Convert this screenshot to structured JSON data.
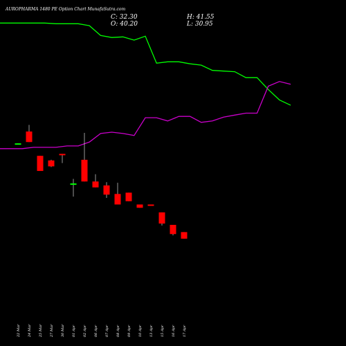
{
  "header": {
    "title": "AUROPHARMA 1480  PE Option  Chart MunafaSutra.com",
    "close_label": "C: 32.30",
    "open_label": "O: 40.20",
    "high_label": "H: 41.55",
    "low_label": "L: 30.95"
  },
  "colors": {
    "background": "#000000",
    "up_candle": "#00ff00",
    "down_candle": "#ff0000",
    "wick": "#ffffff",
    "upper_line": "#00ff00",
    "lower_line": "#cc00cc"
  },
  "chart_data": {
    "type": "candlestick",
    "categories": [
      "22 Mar",
      "24 Mar",
      "25 Mar",
      "27 Mar",
      "30 Mar",
      "01 Apr",
      "02 Apr",
      "06 Apr",
      "07 Apr",
      "08 Apr",
      "09 Apr",
      "10 Apr",
      "13 Apr",
      "15 Apr",
      "16 Apr",
      "17 Apr"
    ],
    "ylim": [
      0,
      100
    ],
    "candles": [
      {
        "open": 60.6,
        "close": 60.4,
        "high": 60.6,
        "low": 60.4
      },
      {
        "open": 61.0,
        "close": 64.2,
        "high": 66.2,
        "low": 61.0
      },
      {
        "open": 52.2,
        "close": 56.8,
        "high": 56.8,
        "low": 52.2
      },
      {
        "open": 53.6,
        "close": 55.4,
        "high": 55.6,
        "low": 53.4
      },
      {
        "open": 57.0,
        "close": 57.4,
        "high": 57.4,
        "low": 54.6
      },
      {
        "open": 48.4,
        "close": 48.2,
        "high": 49.8,
        "low": 44.4
      },
      {
        "open": 49.0,
        "close": 55.6,
        "high": 63.8,
        "low": 49.0
      },
      {
        "open": 47.2,
        "close": 49.0,
        "high": 51.2,
        "low": 47.2
      },
      {
        "open": 45.0,
        "close": 47.8,
        "high": 48.8,
        "low": 44.0
      },
      {
        "open": 42.0,
        "close": 45.2,
        "high": 48.6,
        "low": 42.0
      },
      {
        "open": 43.0,
        "close": 45.6,
        "high": 45.6,
        "low": 43.0
      },
      {
        "open": 41.0,
        "close": 42.0,
        "high": 42.0,
        "low": 41.0
      },
      {
        "open": 42.0,
        "close": 42.0,
        "high": 42.0,
        "low": 42.0
      },
      {
        "open": 36.2,
        "close": 39.6,
        "high": 39.6,
        "low": 35.6
      },
      {
        "open": 33.0,
        "close": 35.8,
        "high": 35.8,
        "low": 32.6
      },
      {
        "open": 31.6,
        "close": 33.6,
        "high": 33.6,
        "low": 31.6
      }
    ],
    "lines": [
      {
        "name": "",
        "color": "#00ff00",
        "x": [
          0,
          1,
          2,
          3,
          4,
          5,
          6,
          7,
          8,
          9,
          10,
          11,
          12,
          13,
          14,
          15,
          16,
          17,
          18,
          19,
          20,
          21,
          22,
          23,
          24,
          25,
          26
        ],
        "values": [
          97.2,
          97.2,
          97.2,
          97.2,
          97.2,
          97.0,
          97.0,
          97.0,
          96.4,
          93.4,
          92.8,
          93.0,
          92.0,
          93.2,
          85.0,
          85.4,
          85.4,
          84.8,
          84.4,
          82.8,
          82.6,
          82.4,
          80.6,
          80.6,
          77.0,
          73.8,
          72.2
        ],
        "note_x": "index of point along the span"
      },
      {
        "name": "",
        "color": "#cc00cc",
        "x": [
          0,
          1,
          2,
          3,
          4,
          5,
          6,
          7,
          8,
          9,
          10,
          11,
          12,
          13,
          14,
          15,
          16,
          17,
          18,
          19,
          20,
          21,
          22,
          23,
          24,
          25,
          26
        ],
        "values": [
          59.0,
          59.0,
          59.0,
          59.4,
          59.4,
          59.4,
          59.8,
          59.8,
          61.0,
          63.6,
          64.0,
          63.6,
          63.0,
          68.4,
          68.4,
          67.4,
          68.8,
          68.8,
          67.0,
          67.4,
          68.6,
          69.2,
          69.8,
          69.8,
          78.0,
          79.4,
          78.6
        ]
      }
    ]
  }
}
